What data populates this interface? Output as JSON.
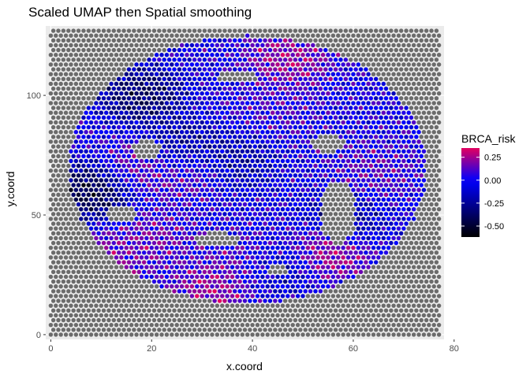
{
  "chart_data": {
    "type": "scatter",
    "title": "Scaled UMAP then Spatial smoothing",
    "xlabel": "x.coord",
    "ylabel": "y.coord",
    "xlim": [
      -1,
      78
    ],
    "ylim": [
      -2,
      129
    ],
    "x_ticks": [
      0,
      20,
      40,
      60,
      80
    ],
    "y_ticks": [
      0,
      50,
      100
    ],
    "grid": true,
    "legend": {
      "title": "BRCA_risk",
      "placement": "right",
      "range": [
        -0.62,
        0.35
      ],
      "ticks": [
        0.25,
        0.0,
        -0.25,
        -0.5
      ],
      "tick_labels": [
        "0.25",
        "0.00",
        "-0.25",
        "-0.50"
      ],
      "colors": {
        "low": "#000000",
        "mid": "#0000ff",
        "high": "#e3005f"
      }
    },
    "background_color": "#6b6b6b",
    "grid_spots": {
      "x_range": [
        0,
        77
      ],
      "y_range": [
        0,
        127
      ],
      "rows": 64
    },
    "tissue_region": {
      "center": [
        39,
        69
      ],
      "radius_x": 35.5,
      "radius_y": 56
    },
    "holes": [
      {
        "center": [
          57,
          51
        ],
        "radius_x": 3.5,
        "radius_y": 13
      },
      {
        "center": [
          33,
          40
        ],
        "radius_x": 5,
        "radius_y": 2.6
      },
      {
        "center": [
          14,
          50
        ],
        "radius_x": 2.8,
        "radius_y": 3.6
      },
      {
        "center": [
          19,
          77
        ],
        "radius_x": 3,
        "radius_y": 4
      },
      {
        "center": [
          55,
          80
        ],
        "radius_x": 3.2,
        "radius_y": 4
      },
      {
        "center": [
          37,
          108
        ],
        "radius_x": 4,
        "radius_y": 2.6
      },
      {
        "center": [
          45,
          27
        ],
        "radius_x": 2.5,
        "radius_y": 2
      }
    ],
    "value_hotspots": [
      {
        "x": 8,
        "y": 60,
        "value": -0.6
      },
      {
        "x": 18,
        "y": 100,
        "value": -0.5
      },
      {
        "x": 26,
        "y": 78,
        "value": -0.35
      },
      {
        "x": 36,
        "y": 72,
        "value": -0.3
      },
      {
        "x": 44,
        "y": 28,
        "value": -0.3
      },
      {
        "x": 58,
        "y": 48,
        "value": -0.3
      },
      {
        "x": 55,
        "y": 35,
        "value": 0.35
      },
      {
        "x": 32,
        "y": 18,
        "value": 0.3
      },
      {
        "x": 40,
        "y": 30,
        "value": 0.25
      },
      {
        "x": 47,
        "y": 115,
        "value": 0.3
      },
      {
        "x": 28,
        "y": 68,
        "value": 0.2
      },
      {
        "x": 20,
        "y": 40,
        "value": 0.2
      },
      {
        "x": 12,
        "y": 32,
        "value": 0.2
      },
      {
        "x": 18,
        "y": 70,
        "value": 0.22
      },
      {
        "x": 64,
        "y": 68,
        "value": 0.15
      },
      {
        "x": 45,
        "y": 95,
        "value": 0.1
      }
    ]
  }
}
